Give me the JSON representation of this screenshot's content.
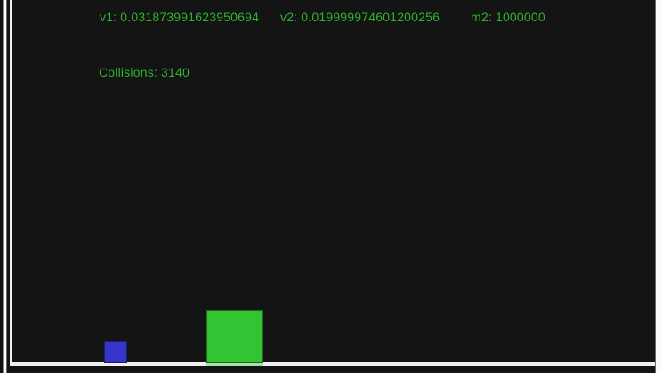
{
  "hud": {
    "v1": {
      "label": "v1:",
      "value": "0.031873991623950694"
    },
    "v2": {
      "label": "v2:",
      "value": "0.019999974601200256"
    },
    "m2": {
      "label": "m2:",
      "value": "1000000"
    },
    "collisions": {
      "label": "Collisions:",
      "value": "3140"
    }
  },
  "colors": {
    "hud_text": "#2fb32f",
    "small_block": "#3535c9",
    "big_block": "#32c432",
    "boundary": "#f0f0f0",
    "canvas_background": "#141414",
    "page_background": "#fbfbfb"
  }
}
